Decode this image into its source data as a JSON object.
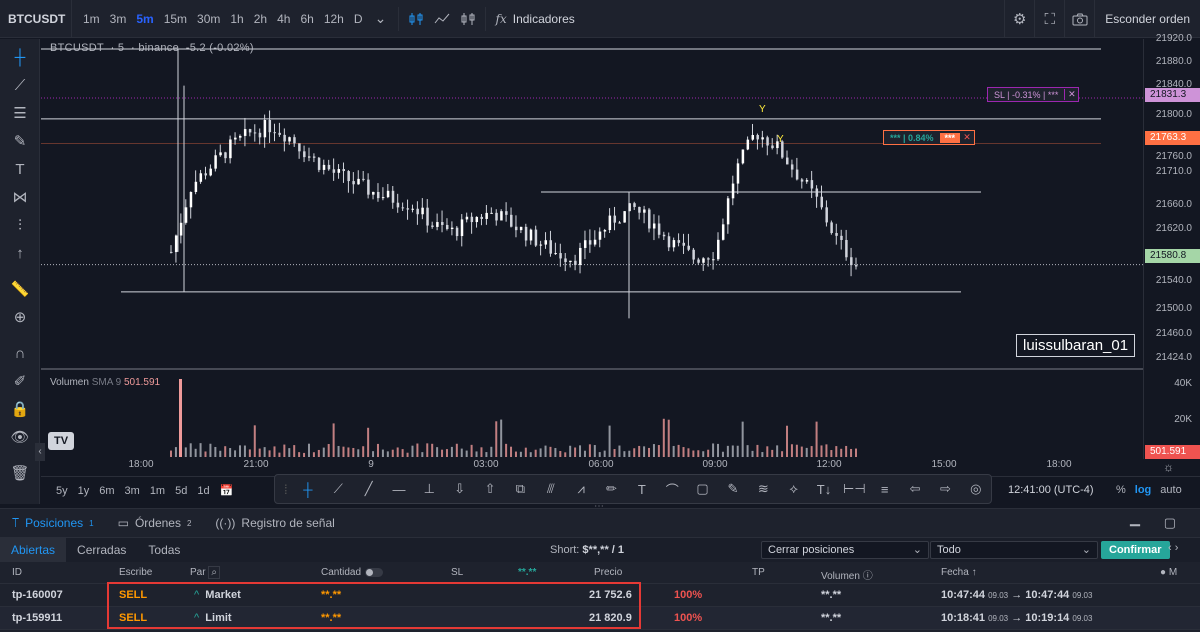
{
  "header": {
    "symbol": "BTCUSDT",
    "timeframes": [
      "1m",
      "3m",
      "5m",
      "15m",
      "30m",
      "1h",
      "2h",
      "4h",
      "6h",
      "12h",
      "D"
    ],
    "active_timeframe": "5m",
    "indicators_label": "Indicadores",
    "hide_orders_label": "Esconder orden"
  },
  "legend": {
    "symbol": "BTCUSDT",
    "interval": "5",
    "exchange": "binance",
    "change": "-5.2 (-0.02%)"
  },
  "volume_legend": {
    "label": "Volumen",
    "sma_label": "SMA 9",
    "sma_value": "501.591"
  },
  "watermark": "luissulbaran_01",
  "price_scale": {
    "labels": [
      "21920.0",
      "21880.0",
      "21840.0",
      "21800.0",
      "21760.0",
      "21710.0",
      "21660.0",
      "21620.0",
      "21580.0",
      "21540.0",
      "21500.0",
      "21460.0",
      "21424.0"
    ],
    "tag_sl": "21831.3",
    "tag_tp": "21763.3",
    "tag_last": "21580.8",
    "vol_labels": [
      "40K",
      "20K"
    ],
    "vol_tag": "501.591"
  },
  "order_labels": {
    "sl_text": "SL | -0.31% | ***",
    "tp_text": "*** | 0.84%",
    "tp_masked": "***"
  },
  "time_axis": [
    "18:00",
    "21:00",
    "9",
    "03:00",
    "06:00",
    "09:00",
    "12:00",
    "15:00",
    "18:00"
  ],
  "ranges": [
    "5y",
    "1y",
    "6m",
    "3m",
    "1m",
    "5d",
    "1d"
  ],
  "clock": "12:41:00 (UTC-4)",
  "scale_options": [
    "%",
    "log",
    "auto"
  ],
  "chart_data": {
    "type": "candlestick",
    "symbol": "BTCUSDT",
    "interval": "5",
    "exchange": "binance",
    "last_price": 21580.8,
    "ylim": [
      21424,
      21920
    ],
    "horizontal_lines": [
      21905,
      21800,
      21763.3,
      21690,
      21540
    ],
    "sl_price": 21831.3,
    "tp_price": 21763.3,
    "approx_closes": [
      21600,
      21700,
      21730,
      21760,
      21780,
      21790,
      21770,
      21740,
      21720,
      21705,
      21690,
      21680,
      21670,
      21640,
      21630,
      21650,
      21660,
      21640,
      21620,
      21600,
      21590,
      21620,
      21650,
      21665,
      21640,
      21610,
      21590,
      21600,
      21720,
      21780,
      21760,
      21720,
      21680,
      21620,
      21580
    ]
  },
  "panel": {
    "tabs": [
      {
        "label": "Posiciones",
        "count": "1"
      },
      {
        "label": "Órdenes",
        "count": "2"
      },
      {
        "label": "Registro de señal",
        "count": ""
      }
    ],
    "subtabs": [
      "Abiertas",
      "Cerradas",
      "Todas"
    ],
    "short_label": "Short:",
    "short_value": "$**,** / 1",
    "close_select": "Cerrar posiciones",
    "filter_select": "Todo",
    "confirm_label": "Confirmar",
    "columns": [
      "ID",
      "Escribe",
      "Par",
      "Cantidad",
      "SL",
      "**.**",
      "Precio",
      "TP",
      "Volumen",
      "Fecha ↑"
    ],
    "rows": [
      {
        "id": "tp-160007",
        "side": "SELL",
        "type": "Market",
        "qty": "**.**",
        "price": "21 752.6",
        "pct": "100%",
        "volume": "**.**",
        "open_time": "10:47:44",
        "open_date": "09.03",
        "close_time": "10:47:44",
        "close_date": "09.03"
      },
      {
        "id": "tp-159911",
        "side": "SELL",
        "type": "Limit",
        "qty": "**.**",
        "price": "21 820.9",
        "pct": "100%",
        "volume": "**.**",
        "open_time": "10:18:41",
        "open_date": "09.03",
        "close_time": "10:19:14",
        "close_date": "09.03"
      }
    ]
  }
}
